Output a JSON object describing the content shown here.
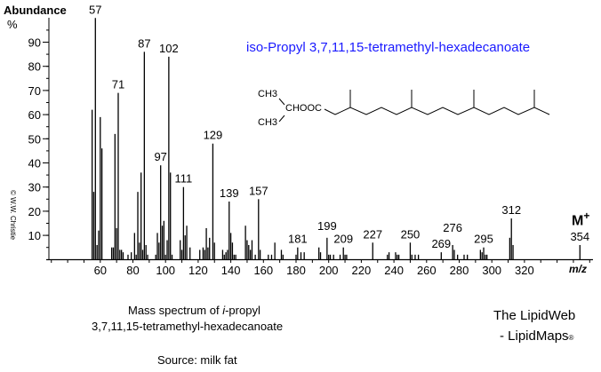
{
  "chart_data": {
    "type": "bar",
    "title": "iso-Propyl 3,7,11,15-tetramethyl-hexadecanoate",
    "xlabel": "m/z",
    "ylabel": "Abundance",
    "ylabel_unit": "%",
    "xlim": [
      26,
      362
    ],
    "ylim": [
      0,
      100
    ],
    "x_ticks": [
      60,
      80,
      100,
      120,
      140,
      160,
      180,
      200,
      220,
      240,
      260,
      280,
      300,
      320
    ],
    "y_ticks": [
      10,
      20,
      30,
      40,
      50,
      60,
      70,
      80,
      90
    ],
    "grid": false,
    "title_color": "#1a1aff",
    "peaks": [
      [
        55,
        62
      ],
      [
        56,
        28
      ],
      [
        57,
        100
      ],
      [
        58,
        6
      ],
      [
        59,
        12
      ],
      [
        60,
        59
      ],
      [
        61,
        46
      ],
      [
        67,
        5
      ],
      [
        68,
        5
      ],
      [
        69,
        52
      ],
      [
        70,
        13
      ],
      [
        71,
        69
      ],
      [
        72,
        4
      ],
      [
        73,
        4
      ],
      [
        74,
        3
      ],
      [
        77,
        2
      ],
      [
        79,
        3
      ],
      [
        81,
        11
      ],
      [
        82,
        2
      ],
      [
        83,
        28
      ],
      [
        84,
        7
      ],
      [
        85,
        36
      ],
      [
        86,
        4
      ],
      [
        87,
        86
      ],
      [
        88,
        6
      ],
      [
        89,
        2
      ],
      [
        94,
        2
      ],
      [
        95,
        11
      ],
      [
        96,
        7
      ],
      [
        97,
        39
      ],
      [
        98,
        14
      ],
      [
        99,
        16
      ],
      [
        100,
        2
      ],
      [
        101,
        8
      ],
      [
        102,
        84
      ],
      [
        103,
        36
      ],
      [
        104,
        2
      ],
      [
        109,
        8
      ],
      [
        110,
        4
      ],
      [
        111,
        30
      ],
      [
        112,
        10
      ],
      [
        113,
        14
      ],
      [
        115,
        5
      ],
      [
        121,
        4
      ],
      [
        123,
        5
      ],
      [
        124,
        4
      ],
      [
        125,
        13
      ],
      [
        126,
        5
      ],
      [
        127,
        9
      ],
      [
        129,
        48
      ],
      [
        130,
        7
      ],
      [
        135,
        4
      ],
      [
        136,
        2
      ],
      [
        137,
        3
      ],
      [
        138,
        4
      ],
      [
        139,
        24
      ],
      [
        140,
        11
      ],
      [
        141,
        7
      ],
      [
        142,
        2
      ],
      [
        143,
        2
      ],
      [
        149,
        14
      ],
      [
        150,
        8
      ],
      [
        151,
        6
      ],
      [
        152,
        4
      ],
      [
        153,
        8
      ],
      [
        155,
        2
      ],
      [
        157,
        25
      ],
      [
        158,
        4
      ],
      [
        163,
        2
      ],
      [
        165,
        2
      ],
      [
        167,
        7
      ],
      [
        171,
        4
      ],
      [
        172,
        2
      ],
      [
        180,
        2
      ],
      [
        181,
        5
      ],
      [
        183,
        3
      ],
      [
        185,
        3
      ],
      [
        194,
        5
      ],
      [
        195,
        3
      ],
      [
        199,
        9
      ],
      [
        200,
        2
      ],
      [
        201,
        2
      ],
      [
        203,
        2
      ],
      [
        207,
        2
      ],
      [
        209,
        5
      ],
      [
        210,
        2
      ],
      [
        211,
        2
      ],
      [
        227,
        7
      ],
      [
        236,
        2
      ],
      [
        237,
        3
      ],
      [
        241,
        3
      ],
      [
        242,
        2
      ],
      [
        243,
        2
      ],
      [
        250,
        7
      ],
      [
        251,
        2
      ],
      [
        253,
        2
      ],
      [
        255,
        2
      ],
      [
        269,
        3
      ],
      [
        276,
        6
      ],
      [
        277,
        4
      ],
      [
        279,
        2
      ],
      [
        283,
        2
      ],
      [
        285,
        2
      ],
      [
        293,
        4
      ],
      [
        294,
        3
      ],
      [
        295,
        5
      ],
      [
        296,
        2
      ],
      [
        297,
        2
      ],
      [
        311,
        9
      ],
      [
        312,
        17
      ],
      [
        313,
        6
      ],
      [
        354,
        6
      ]
    ],
    "peak_labels": [
      "57",
      "71",
      "87",
      "97",
      "102",
      "111",
      "129",
      "139",
      "157",
      "181",
      "199",
      "209",
      "227",
      "250",
      "269",
      "276",
      "295",
      "312",
      "354"
    ],
    "molecular_ion_label": "M",
    "molecular_ion_sup": "+"
  },
  "structure": {
    "ch3_top": "CH3",
    "ch3_bottom": "CH3",
    "ester": "CHOOC"
  },
  "caption": {
    "line1_prefix": "Mass spectrum of ",
    "line1_italic": "i",
    "line1_suffix": "-propyl",
    "line2": "3,7,11,15-tetramethyl-hexadecanoate",
    "source": "Source: milk fat"
  },
  "credit": {
    "line1": "The LipidWeb",
    "line2": "- LipidMaps",
    "reg": "®",
    "copyright": "© W.W. Christie"
  }
}
